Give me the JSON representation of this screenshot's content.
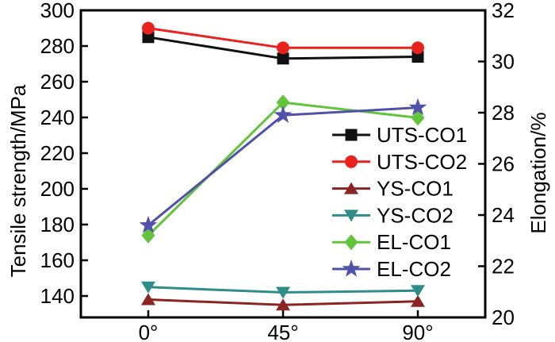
{
  "figure": {
    "background": "#ffffff",
    "frame_color": "#000000",
    "text_color": "#000000"
  },
  "chart_data": {
    "type": "line",
    "categories": [
      "0°",
      "45°",
      "90°"
    ],
    "title": "",
    "xlabel": "",
    "left_axis": {
      "label": "Tensile strength/MPa",
      "ticks": [
        140,
        160,
        180,
        200,
        220,
        240,
        260,
        280,
        300
      ],
      "range": [
        140,
        300
      ]
    },
    "right_axis": {
      "label": "Elongation/%",
      "ticks": [
        20,
        22,
        24,
        26,
        28,
        30,
        32
      ],
      "range": [
        20,
        32
      ]
    },
    "grid": false,
    "legend_position": "inside-right",
    "series": [
      {
        "name": "UTS-CO1",
        "axis": "left",
        "marker": "square",
        "color": "#111111",
        "values": [
          285,
          273,
          274
        ]
      },
      {
        "name": "UTS-CO2",
        "axis": "left",
        "marker": "circle",
        "color": "#e8231d",
        "values": [
          290,
          279,
          279
        ]
      },
      {
        "name": "YS-CO1",
        "axis": "left",
        "marker": "triangle-up",
        "color": "#8a2523",
        "values": [
          138,
          135,
          137
        ]
      },
      {
        "name": "YS-CO2",
        "axis": "left",
        "marker": "triangle-down",
        "color": "#2e8c89",
        "values": [
          145,
          142,
          143
        ]
      },
      {
        "name": "EL-CO1",
        "axis": "right",
        "marker": "diamond",
        "color": "#62c33c",
        "values": [
          23.2,
          28.4,
          27.8
        ]
      },
      {
        "name": "EL-CO2",
        "axis": "right",
        "marker": "star",
        "color": "#5051a9",
        "values": [
          23.6,
          27.9,
          28.2
        ]
      }
    ]
  }
}
